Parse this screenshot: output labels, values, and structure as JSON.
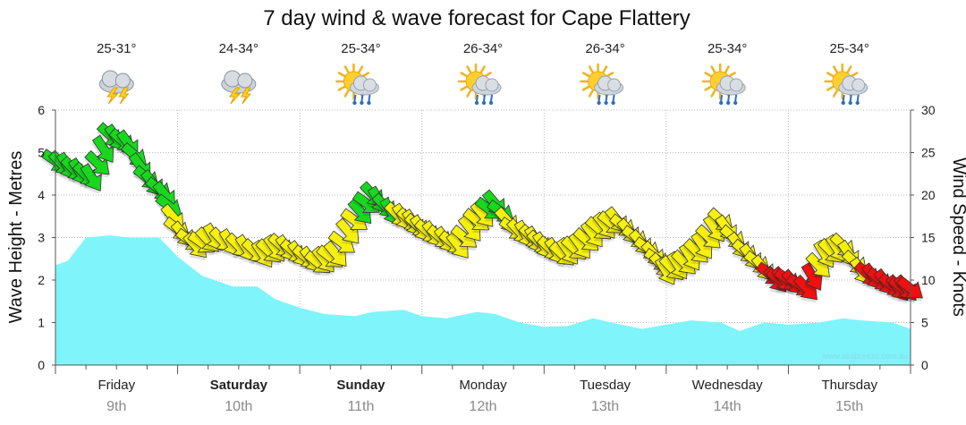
{
  "chart_data": {
    "type": "area",
    "title": "7 day wind & wave forecast for Cape Flattery",
    "ylabel": "Wave Height - Metres",
    "y2label": "Wind Speed - Knots",
    "ylim": [
      0,
      6
    ],
    "y2lim": [
      0,
      30
    ],
    "yticks": [
      "0",
      "1",
      "2",
      "3",
      "4",
      "5",
      "6"
    ],
    "y2ticks": [
      "0",
      "5",
      "10",
      "15",
      "20",
      "25",
      "30"
    ],
    "watermark": "www.seabreeze.com.au",
    "days": [
      {
        "name": "Friday",
        "date": "9th",
        "bold": false,
        "temp": "25-31°",
        "icon": "storm-icon"
      },
      {
        "name": "Saturday",
        "date": "10th",
        "bold": true,
        "temp": "24-34°",
        "icon": "storm-icon"
      },
      {
        "name": "Sunday",
        "date": "11th",
        "bold": true,
        "temp": "25-34°",
        "icon": "sun-shower-icon"
      },
      {
        "name": "Monday",
        "date": "12th",
        "bold": false,
        "temp": "26-34°",
        "icon": "sun-shower-icon"
      },
      {
        "name": "Tuesday",
        "date": "13th",
        "bold": false,
        "temp": "26-34°",
        "icon": "sun-shower-icon"
      },
      {
        "name": "Wednesday",
        "date": "14th",
        "bold": false,
        "temp": "25-34°",
        "icon": "sun-shower-icon"
      },
      {
        "name": "Thursday",
        "date": "15th",
        "bold": false,
        "temp": "25-34°",
        "icon": "sun-shower-icon"
      }
    ],
    "wave": {
      "name": "Wave Height",
      "color": "#7ff4fb",
      "x": [
        0,
        0.1,
        0.25,
        0.45,
        0.6,
        0.85,
        1.0,
        1.2,
        1.45,
        1.65,
        1.8,
        2.0,
        2.2,
        2.45,
        2.6,
        2.85,
        3.0,
        3.2,
        3.45,
        3.6,
        3.8,
        4.0,
        4.2,
        4.4,
        4.55,
        4.8,
        5.0,
        5.2,
        5.45,
        5.6,
        5.8,
        6.0,
        6.25,
        6.45,
        6.6,
        6.85,
        7.0
      ],
      "values": [
        2.35,
        2.45,
        3.0,
        3.05,
        3.0,
        3.0,
        2.55,
        2.1,
        1.85,
        1.85,
        1.55,
        1.35,
        1.2,
        1.15,
        1.25,
        1.3,
        1.15,
        1.1,
        1.25,
        1.2,
        1.0,
        0.9,
        0.92,
        1.1,
        1.0,
        0.85,
        0.95,
        1.05,
        1.0,
        0.8,
        1.0,
        0.95,
        1.0,
        1.1,
        1.05,
        1.0,
        0.85
      ]
    },
    "wind": {
      "name": "Wind Speed",
      "unit": "knots",
      "x": [
        0,
        0.15,
        0.3,
        0.45,
        0.6,
        0.75,
        0.9,
        1.0,
        1.15,
        1.3,
        1.5,
        1.7,
        1.85,
        2.0,
        2.15,
        2.3,
        2.45,
        2.6,
        2.75,
        2.9,
        3.0,
        3.15,
        3.3,
        3.45,
        3.6,
        3.75,
        3.9,
        4.0,
        4.15,
        4.3,
        4.45,
        4.6,
        4.75,
        4.9,
        5.0,
        5.15,
        5.3,
        5.45,
        5.6,
        5.75,
        5.9,
        6.0,
        6.15,
        6.3,
        6.45,
        6.6,
        6.75,
        6.9,
        7.0
      ],
      "values": [
        24,
        23,
        22,
        27,
        26,
        22,
        20,
        16,
        14,
        15,
        14,
        13,
        14,
        13,
        12,
        13,
        17,
        20,
        18,
        17,
        16,
        15,
        14,
        17,
        19,
        16,
        15,
        14,
        13,
        14,
        16,
        17,
        15,
        13,
        11,
        12,
        14,
        17,
        14,
        12,
        10,
        10,
        9,
        13,
        14,
        11,
        10,
        9,
        9
      ]
    }
  }
}
